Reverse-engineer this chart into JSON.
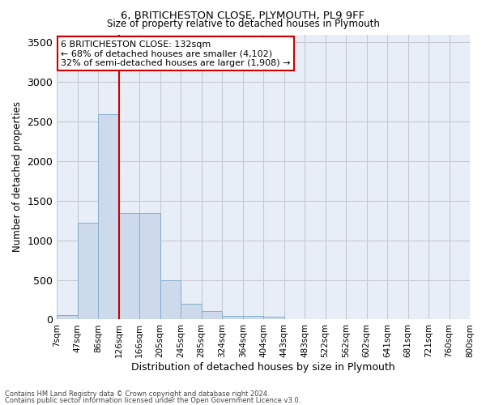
{
  "title1": "6, BRITICHESTON CLOSE, PLYMOUTH, PL9 9FF",
  "title2": "Size of property relative to detached houses in Plymouth",
  "xlabel": "Distribution of detached houses by size in Plymouth",
  "ylabel": "Number of detached properties",
  "footnote1": "Contains HM Land Registry data © Crown copyright and database right 2024.",
  "footnote2": "Contains public sector information licensed under the Open Government Licence v3.0.",
  "bin_labels": [
    "7sqm",
    "47sqm",
    "86sqm",
    "126sqm",
    "166sqm",
    "205sqm",
    "245sqm",
    "285sqm",
    "324sqm",
    "364sqm",
    "404sqm",
    "443sqm",
    "483sqm",
    "522sqm",
    "562sqm",
    "602sqm",
    "641sqm",
    "681sqm",
    "721sqm",
    "760sqm",
    "800sqm"
  ],
  "bar_values": [
    60,
    1220,
    2590,
    1340,
    1340,
    500,
    195,
    105,
    50,
    45,
    35,
    0,
    0,
    0,
    0,
    0,
    0,
    0,
    0,
    0
  ],
  "bar_color": "#ccdaeb",
  "bar_edgecolor": "#85aecb",
  "grid_color": "#c8c8d0",
  "background_color": "#e8eef8",
  "vline_position": 3,
  "vline_color": "#cc0000",
  "annotation_text": "6 BRITICHESTON CLOSE: 132sqm\n← 68% of detached houses are smaller (4,102)\n32% of semi-detached houses are larger (1,908) →",
  "annotation_box_edgecolor": "#cc0000",
  "ylim": [
    0,
    3600
  ],
  "yticks": [
    0,
    500,
    1000,
    1500,
    2000,
    2500,
    3000,
    3500
  ]
}
